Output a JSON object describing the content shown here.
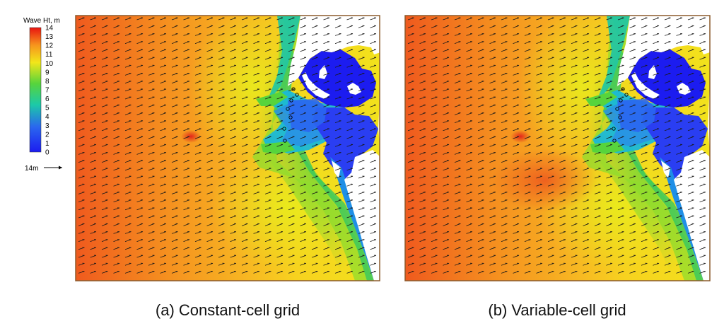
{
  "chart_data": {
    "type": "heatmap",
    "legend": {
      "title": "Wave Ht, m",
      "levels": [
        14,
        13,
        12,
        11,
        10,
        9,
        8,
        7,
        6,
        5,
        4,
        3,
        2,
        1,
        0
      ],
      "colors": [
        "#e81410",
        "#f05a1c",
        "#f7941d",
        "#fbbf24",
        "#f2e61a",
        "#c9e61c",
        "#9ae02a",
        "#57d43c",
        "#20c75a",
        "#1cc9a8",
        "#1ab8d8",
        "#1f8fe6",
        "#2a66ef",
        "#2a3ef2",
        "#1c1cf0"
      ]
    },
    "vector_scale_label": "14m",
    "panels": [
      {
        "caption": "(a) Constant-cell grid",
        "offshore_hotspot": false
      },
      {
        "caption": "(b) Variable-cell grid",
        "offshore_hotspot": true
      }
    ]
  }
}
